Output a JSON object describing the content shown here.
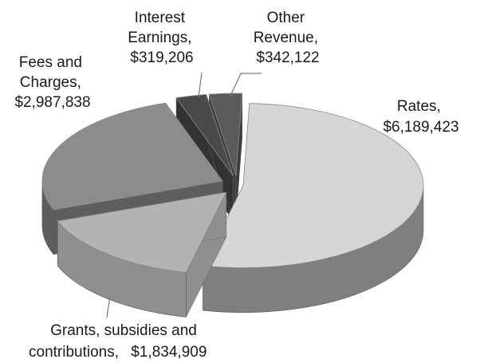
{
  "chart_data": {
    "type": "pie",
    "title": "",
    "style": "3d-exploded",
    "series": [
      {
        "name": "",
        "slices": [
          {
            "label": "Rates,",
            "value_text": "$6,189,423",
            "value": 6189423,
            "color": "#d6d6d6",
            "side_color": "#7f7f7f"
          },
          {
            "label": "Grants, subsidies and",
            "label2": "contributions,",
            "value_text": "$1,834,909",
            "value": 1834909,
            "color": "#b3b3b3",
            "side_color": "#8f8f8f"
          },
          {
            "label": "Fees and",
            "label2": "Charges,",
            "value_text": "$2,987,838",
            "value": 2987838,
            "color": "#8c8c8c",
            "side_color": "#5e5e5e"
          },
          {
            "label": "Interest",
            "label2": "Earnings,",
            "value_text": "$319,206",
            "value": 319206,
            "color": "#4a4a4a",
            "side_color": "#333333"
          },
          {
            "label": "Other",
            "label2": "Revenue,",
            "value_text": "$342,122",
            "value": 342122,
            "color": "#5a5a5a",
            "side_color": "#3d3d3d"
          }
        ]
      }
    ],
    "legend": "none"
  }
}
